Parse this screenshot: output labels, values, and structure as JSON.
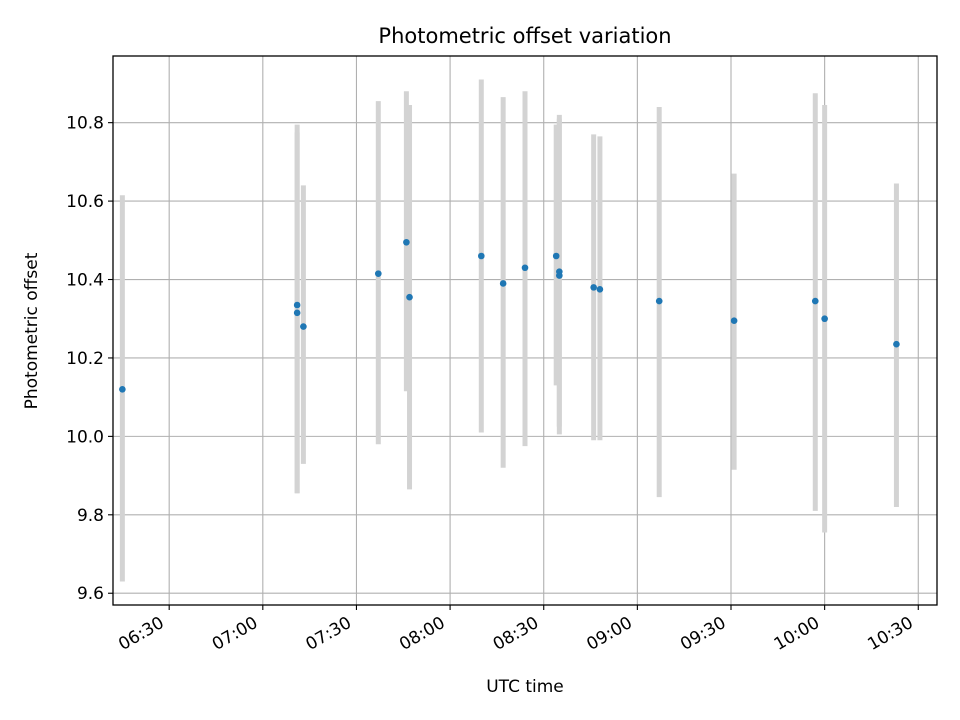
{
  "chart_data": {
    "type": "scatter",
    "title": "Photometric offset variation",
    "xlabel": "UTC time",
    "ylabel": "Photometric offset",
    "xlim": [
      "06:12",
      "10:36"
    ],
    "ylim": [
      9.57,
      10.97
    ],
    "x_ticks": [
      "06:30",
      "07:00",
      "07:30",
      "08:00",
      "08:30",
      "09:00",
      "09:30",
      "10:00",
      "10:30"
    ],
    "y_ticks": [
      "9.6",
      "9.8",
      "10.0",
      "10.2",
      "10.4",
      "10.6",
      "10.8"
    ],
    "grid": true,
    "point_color": "#1f77b4",
    "errorbar_color": "#d3d3d3",
    "series": [
      {
        "x": [
          "06:15",
          "07:11",
          "07:11",
          "07:13",
          "07:37",
          "07:46",
          "07:47",
          "08:10",
          "08:17",
          "08:24",
          "08:34",
          "08:35",
          "08:35",
          "08:46",
          "08:48",
          "09:07",
          "09:31",
          "09:57",
          "10:00",
          "10:23"
        ],
        "y": [
          10.12,
          10.335,
          10.315,
          10.28,
          10.415,
          10.495,
          10.355,
          10.46,
          10.39,
          10.43,
          10.46,
          10.42,
          10.41,
          10.38,
          10.375,
          10.345,
          10.295,
          10.345,
          10.3,
          10.235
        ],
        "y_low": [
          9.63,
          9.855,
          9.855,
          9.93,
          9.98,
          10.115,
          9.865,
          10.01,
          9.92,
          9.975,
          10.13,
          10.025,
          10.005,
          9.99,
          9.99,
          9.845,
          9.915,
          9.81,
          9.755,
          9.82
        ],
        "y_high": [
          10.615,
          10.795,
          10.775,
          10.64,
          10.855,
          10.88,
          10.845,
          10.91,
          10.865,
          10.88,
          10.795,
          10.81,
          10.82,
          10.77,
          10.765,
          10.84,
          10.67,
          10.875,
          10.845,
          10.645
        ]
      }
    ]
  }
}
